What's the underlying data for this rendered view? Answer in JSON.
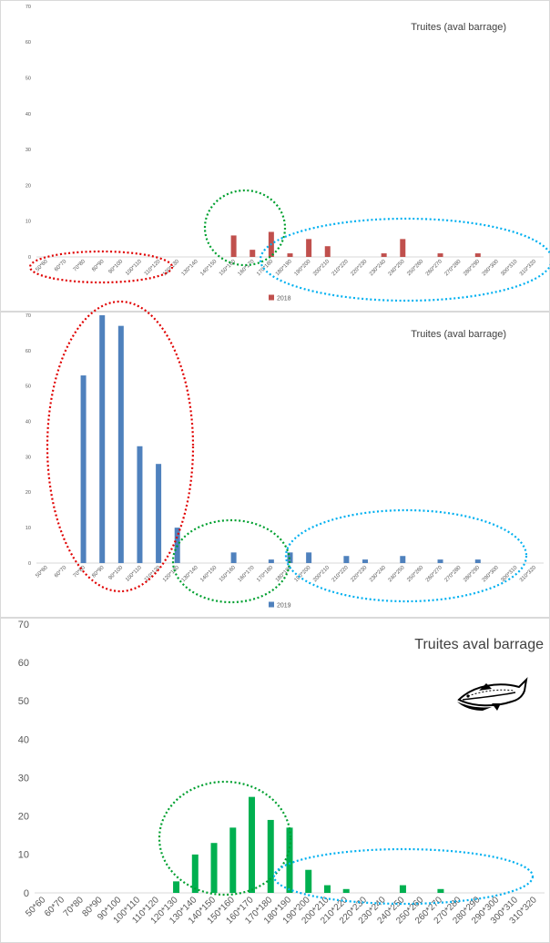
{
  "chart_data": [
    {
      "type": "bar",
      "title": "Truites (aval barrage)",
      "categories": [
        "50*60",
        "60*70",
        "70*80",
        "80*90",
        "90*100",
        "100*110",
        "110*120",
        "120*130",
        "130*140",
        "140*150",
        "150*160",
        "160*170",
        "170*180",
        "180*190",
        "190*200",
        "200*210",
        "210*220",
        "220*230",
        "230*240",
        "240*250",
        "250*260",
        "260*270",
        "270*280",
        "280*290",
        "290*300",
        "300*310",
        "310*320"
      ],
      "series": [
        {
          "name": "2018",
          "values": [
            0,
            0,
            0,
            0,
            0,
            0,
            0,
            0,
            0,
            0,
            6,
            2,
            7,
            1,
            5,
            3,
            0,
            0,
            1,
            5,
            0,
            1,
            0,
            1,
            0,
            0,
            0
          ]
        }
      ],
      "ylim": [
        0,
        70
      ],
      "yticks": [
        0,
        10,
        20,
        30,
        40,
        50,
        60,
        70
      ],
      "grid": false,
      "legend": "bottom",
      "color": "#C0504D",
      "annotations": {
        "circles": [
          "red",
          "green",
          "blue"
        ]
      }
    },
    {
      "type": "bar",
      "title": "Truites (aval barrage)",
      "categories": [
        "50*60",
        "60*70",
        "70*80",
        "80*90",
        "90*100",
        "100*110",
        "110*120",
        "120*130",
        "130*140",
        "140*150",
        "150*160",
        "160*170",
        "170*180",
        "180*190",
        "190*200",
        "200*210",
        "210*220",
        "220*230",
        "230*240",
        "240*250",
        "250*260",
        "260*270",
        "270*280",
        "280*290",
        "290*300",
        "300*310",
        "310*320"
      ],
      "series": [
        {
          "name": "2019",
          "values": [
            0,
            0,
            53,
            70,
            67,
            33,
            28,
            10,
            0,
            0,
            3,
            0,
            1,
            3,
            3,
            0,
            2,
            1,
            0,
            2,
            0,
            1,
            0,
            1,
            0,
            0,
            0
          ]
        }
      ],
      "ylim": [
        0,
        70
      ],
      "yticks": [
        0,
        10,
        20,
        30,
        40,
        50,
        60,
        70
      ],
      "grid": false,
      "legend": "bottom",
      "color": "#4F81BD",
      "annotations": {
        "circles": [
          "red",
          "green",
          "blue"
        ]
      }
    },
    {
      "type": "bar",
      "title": "Truites aval barrage",
      "categories": [
        "50*60",
        "60*70",
        "70*80",
        "80*90",
        "90*100",
        "100*110",
        "110*120",
        "120*130",
        "130*140",
        "140*150",
        "150*160",
        "160*170",
        "170*180",
        "180*190",
        "190*200",
        "200*210",
        "210*220",
        "220*230",
        "230*240",
        "240*250",
        "250*260",
        "260*270",
        "270*280",
        "280*290",
        "290*300",
        "300*310",
        "310*320"
      ],
      "series": [
        {
          "values": [
            0,
            0,
            0,
            0,
            0,
            0,
            0,
            3,
            10,
            13,
            17,
            25,
            19,
            17,
            6,
            2,
            1,
            0,
            0,
            2,
            0,
            1,
            0,
            0,
            0,
            0,
            0
          ]
        }
      ],
      "ylim": [
        0,
        70
      ],
      "yticks": [
        0,
        10,
        20,
        30,
        40,
        50,
        60,
        70
      ],
      "grid": false,
      "color": "#00B050",
      "icons": [
        "fish-icon"
      ],
      "annotations": {
        "circles": [
          "green",
          "blue"
        ]
      }
    }
  ]
}
